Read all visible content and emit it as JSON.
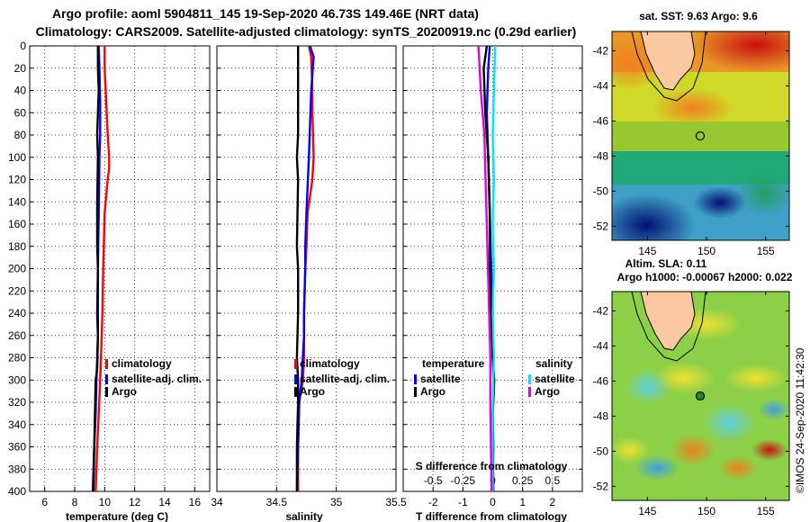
{
  "header": {
    "title1": "Argo profile: aoml 5904811_145 19-Sep-2020 46.73S 149.46E (NRT data)",
    "title2": "Climatology: CARS2009. Satellite-adjusted climatology: synTS_20200919.nc (0.29d earlier)"
  },
  "colors": {
    "climatology": "#ff0000",
    "satellite": "#0000ff",
    "argo": "#000000",
    "sal_satellite": "#00e5ff",
    "sal_argo": "#e000e0"
  },
  "chart_data": [
    {
      "type": "line",
      "id": "temperature",
      "xlabel": "temperature (deg C)",
      "ylabel": "",
      "xlim": [
        5,
        17
      ],
      "ylim": [
        400,
        0
      ],
      "xticks": [
        6,
        8,
        10,
        12,
        14,
        16
      ],
      "yticks": [
        0,
        20,
        40,
        60,
        80,
        100,
        120,
        140,
        160,
        180,
        200,
        220,
        240,
        260,
        280,
        300,
        320,
        340,
        360,
        380,
        400
      ],
      "series": [
        {
          "name": "climatology",
          "color": "#ff0000",
          "x": [
            10.0,
            10.0,
            10.1,
            10.2,
            10.3,
            10.3,
            10.2,
            10.0,
            9.9,
            9.85,
            9.8,
            9.75,
            9.7,
            9.6,
            9.5,
            9.4
          ],
          "y": [
            0,
            20,
            50,
            80,
            100,
            110,
            120,
            150,
            200,
            240,
            260,
            280,
            300,
            330,
            360,
            400
          ]
        },
        {
          "name": "satellite-adj. clim.",
          "color": "#0000ff",
          "x": [
            9.6,
            9.65,
            9.7,
            9.7,
            9.65,
            9.6,
            9.55,
            9.55,
            9.55,
            9.5,
            9.45,
            9.4,
            9.3,
            9.2
          ],
          "y": [
            0,
            20,
            50,
            80,
            100,
            150,
            200,
            240,
            260,
            280,
            300,
            330,
            360,
            400
          ]
        },
        {
          "name": "Argo",
          "color": "#000000",
          "x": [
            9.55,
            9.55,
            9.6,
            9.55,
            9.5,
            9.55,
            9.5,
            9.5,
            9.55,
            9.5,
            9.55,
            9.5,
            9.4,
            9.35,
            9.3,
            9.25
          ],
          "y": [
            0,
            20,
            40,
            60,
            80,
            100,
            140,
            180,
            200,
            240,
            260,
            290,
            300,
            330,
            360,
            400
          ]
        }
      ],
      "legend": [
        "climatology",
        "satellite-adj. clim.",
        "Argo"
      ]
    },
    {
      "type": "line",
      "id": "salinity",
      "xlabel": "salinity",
      "xlim": [
        34,
        35.5
      ],
      "ylim": [
        400,
        0
      ],
      "xticks": [
        34,
        34.5,
        35,
        35.5
      ],
      "xticklabels": [
        "34",
        "34.5",
        "35",
        "35.5"
      ],
      "series": [
        {
          "name": "climatology",
          "color": "#ff0000",
          "x": [
            34.77,
            34.79,
            34.8,
            34.8,
            34.81,
            34.8,
            34.76,
            34.75,
            34.74,
            34.73,
            34.73,
            34.72,
            34.69,
            34.68,
            34.68
          ],
          "y": [
            0,
            10,
            40,
            60,
            100,
            120,
            150,
            180,
            200,
            240,
            280,
            300,
            320,
            360,
            400
          ]
        },
        {
          "name": "satellite-adj. clim.",
          "color": "#0000ff",
          "x": [
            34.78,
            34.81,
            34.79,
            34.77,
            34.75,
            34.74,
            34.74,
            34.73,
            34.73,
            34.72,
            34.71,
            34.69,
            34.68,
            34.67
          ],
          "y": [
            0,
            10,
            40,
            100,
            150,
            180,
            200,
            240,
            260,
            280,
            300,
            320,
            360,
            400
          ]
        },
        {
          "name": "Argo",
          "color": "#000000",
          "x": [
            34.68,
            34.68,
            34.68,
            34.67,
            34.68,
            34.67,
            34.68,
            34.68,
            34.67,
            34.68,
            34.68,
            34.67,
            34.67
          ],
          "y": [
            0,
            40,
            80,
            100,
            120,
            180,
            200,
            240,
            280,
            300,
            320,
            360,
            400
          ]
        }
      ],
      "legend": [
        "climatology",
        "satellite-adj. clim.",
        "Argo"
      ]
    },
    {
      "type": "line",
      "id": "difference",
      "xlabel": "T difference from climatology",
      "xlim": [
        -3,
        3
      ],
      "ylim": [
        400,
        0
      ],
      "xticks": [
        -2,
        -1,
        0,
        1,
        2
      ],
      "s_axis_label": "S difference from climatology",
      "s_xlim": [
        -0.75,
        0.75
      ],
      "s_xticks": [
        -0.5,
        -0.25,
        0,
        0.25,
        0.5
      ],
      "s_xticklabels": [
        "-0.5",
        "-0.25",
        "0",
        "0.25",
        "0.5"
      ],
      "series": [
        {
          "name": "satellite",
          "group": "temperature",
          "axis": "T",
          "color": "#0000ff",
          "x": [
            -0.1,
            -0.15,
            -0.2,
            -0.15,
            -0.1,
            -0.05,
            0,
            0,
            0.02,
            0,
            0.02,
            0.0
          ],
          "y": [
            0,
            20,
            60,
            100,
            150,
            200,
            240,
            280,
            300,
            330,
            360,
            400
          ]
        },
        {
          "name": "Argo",
          "group": "temperature",
          "axis": "T",
          "color": "#000000",
          "x": [
            -0.2,
            -0.3,
            -0.25,
            -0.15,
            -0.1,
            -0.1,
            -0.05,
            0,
            0.05,
            0,
            0.0,
            0.02
          ],
          "y": [
            0,
            20,
            60,
            100,
            150,
            200,
            240,
            280,
            300,
            330,
            360,
            400
          ]
        },
        {
          "name": "satellite",
          "group": "salinity",
          "axis": "S",
          "color": "#00e5ff",
          "x": [
            0.02,
            0.01,
            0.0,
            0.01,
            0.0,
            0.01,
            0.0,
            0.01,
            0.0,
            0.0
          ],
          "y": [
            0,
            40,
            80,
            120,
            160,
            200,
            240,
            280,
            320,
            400
          ]
        },
        {
          "name": "Argo",
          "group": "salinity",
          "axis": "S",
          "color": "#e000e0",
          "x": [
            -0.12,
            -0.1,
            -0.07,
            -0.06,
            -0.05,
            -0.04,
            -0.03,
            -0.02,
            -0.02,
            -0.01
          ],
          "y": [
            0,
            40,
            80,
            120,
            160,
            200,
            240,
            280,
            320,
            400
          ]
        }
      ],
      "legend_groups": [
        {
          "title": "temperature",
          "items": [
            "satellite",
            "Argo"
          ]
        },
        {
          "title": "salinity",
          "items": [
            "satellite",
            "Argo"
          ]
        }
      ]
    }
  ],
  "maps": {
    "sst": {
      "title": "sat. SST: 9.63 Argo: 9.6",
      "lon_ticks": [
        145,
        150,
        155
      ],
      "lat_ticks": [
        -42,
        -44,
        -46,
        -48,
        -50,
        -52
      ],
      "lon_range": [
        142,
        157
      ],
      "lat_range": [
        -52.8,
        -40.9
      ],
      "float_lon": 149.46,
      "float_lat": -46.73
    },
    "sla": {
      "title1": "Altim. SLA: 0.11",
      "title2": "Argo h1000: -0.00067 h2000: 0.022",
      "lon_ticks": [
        145,
        150,
        155
      ],
      "lat_ticks": [
        -42,
        -44,
        -46,
        -48,
        -50,
        -52
      ],
      "lon_range": [
        142,
        157
      ],
      "lat_range": [
        -52.8,
        -40.9
      ],
      "float_lon": 149.46,
      "float_lat": -46.73
    }
  },
  "footer": {
    "stamp": "©IMOS 24-Sep-2020 11:42:30"
  }
}
